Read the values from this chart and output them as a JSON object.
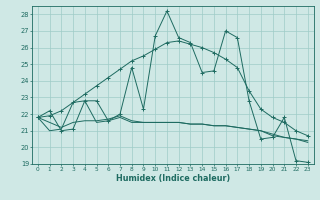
{
  "xlabel": "Humidex (Indice chaleur)",
  "x": [
    0,
    1,
    2,
    3,
    4,
    5,
    6,
    7,
    8,
    9,
    10,
    11,
    12,
    13,
    14,
    15,
    16,
    17,
    18,
    19,
    20,
    21,
    22,
    23
  ],
  "line_main": [
    21.8,
    22.2,
    21.0,
    21.1,
    22.8,
    22.8,
    21.6,
    22.0,
    24.8,
    22.3,
    26.7,
    28.2,
    26.6,
    26.3,
    24.5,
    24.6,
    27.0,
    26.6,
    22.8,
    20.5,
    20.6,
    21.8,
    19.2,
    19.1
  ],
  "line_reg1": [
    21.8,
    21.0,
    21.1,
    22.7,
    22.8,
    21.5,
    21.6,
    21.8,
    21.5,
    21.5,
    21.5,
    21.5,
    21.5,
    21.4,
    21.4,
    21.3,
    21.3,
    21.2,
    21.1,
    21.0,
    20.7,
    20.6,
    20.5,
    20.4
  ],
  "line_reg2": [
    21.8,
    21.5,
    21.2,
    21.5,
    21.6,
    21.6,
    21.7,
    21.9,
    21.6,
    21.5,
    21.5,
    21.5,
    21.5,
    21.4,
    21.4,
    21.3,
    21.3,
    21.2,
    21.1,
    21.0,
    20.8,
    20.6,
    20.5,
    20.3
  ],
  "line_trend": [
    21.8,
    21.9,
    22.2,
    22.7,
    23.2,
    23.7,
    24.2,
    24.7,
    25.2,
    25.5,
    25.9,
    26.3,
    26.4,
    26.2,
    26.0,
    25.7,
    25.3,
    24.8,
    23.4,
    22.3,
    21.8,
    21.5,
    21.0,
    20.7
  ],
  "bg_color": "#cfe8e5",
  "grid_color": "#9fccc7",
  "line_color": "#1e6b61",
  "ylim_min": 19,
  "ylim_max": 28.5,
  "yticks": [
    19,
    20,
    21,
    22,
    23,
    24,
    25,
    26,
    27,
    28
  ],
  "xlim_min": -0.5,
  "xlim_max": 23.5,
  "xticks": [
    0,
    1,
    2,
    3,
    4,
    5,
    6,
    7,
    8,
    9,
    10,
    11,
    12,
    13,
    14,
    15,
    16,
    17,
    18,
    19,
    20,
    21,
    22,
    23
  ]
}
